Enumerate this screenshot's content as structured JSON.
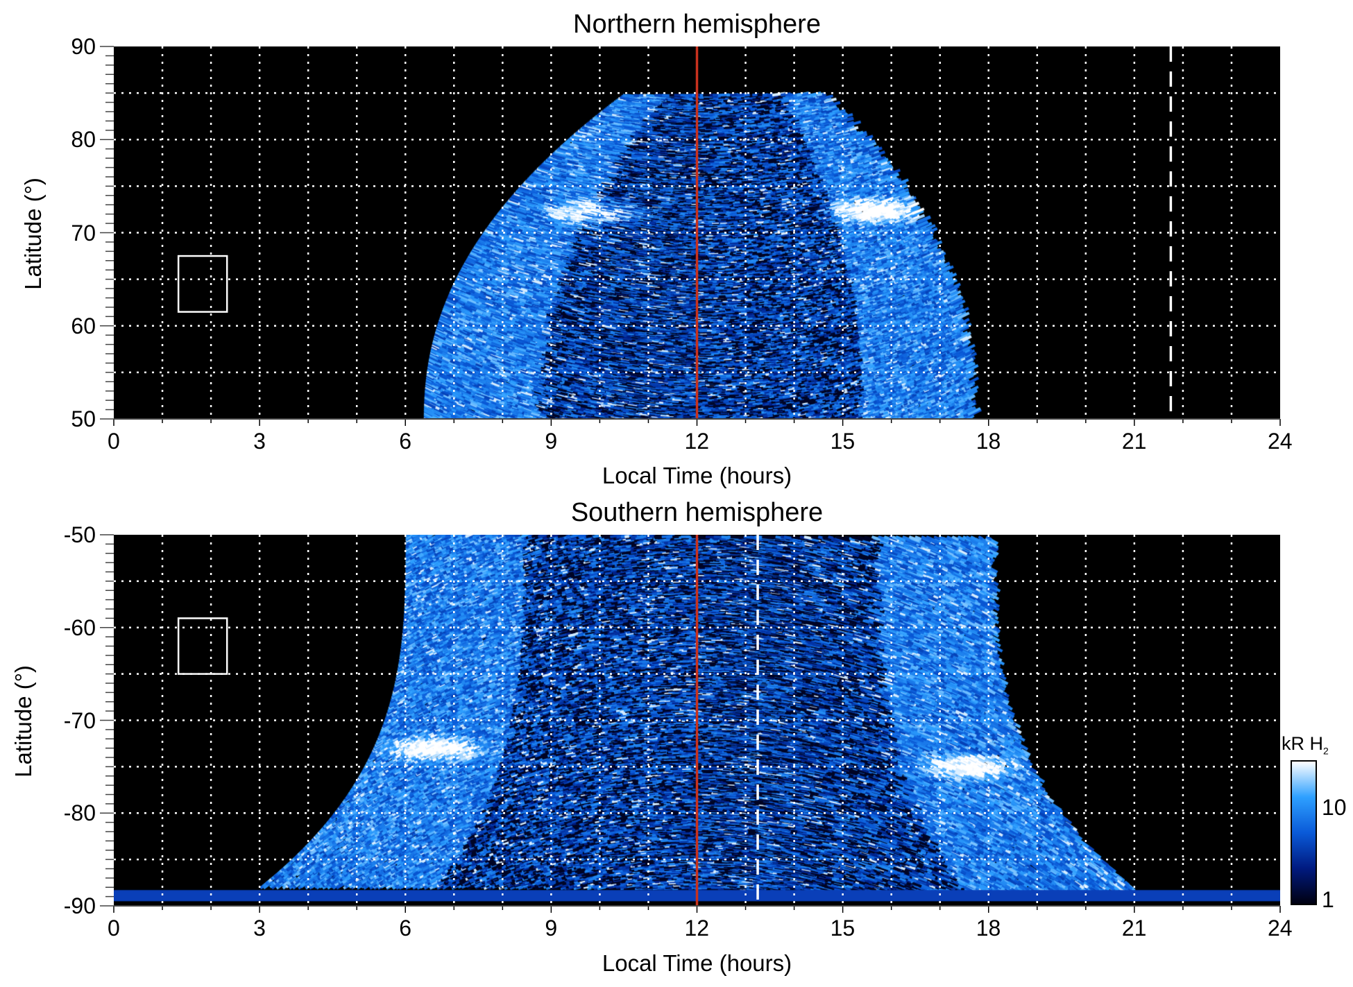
{
  "chart_data": [
    {
      "type": "heatmap",
      "title": "Northern hemisphere",
      "xlabel": "Local Time (hours)",
      "ylabel": "Latitude (°)",
      "xlim": [
        0,
        24
      ],
      "ylim": [
        50,
        90
      ],
      "xticks": [
        "0",
        "3",
        "6",
        "9",
        "12",
        "15",
        "18",
        "21",
        "24"
      ],
      "yticks": [
        "50",
        "60",
        "70",
        "80",
        "90"
      ],
      "grid": {
        "x_step_hours": 1,
        "y_step_deg": 5,
        "style": "dotted"
      },
      "noon_line_lt": 12,
      "noon_line_color": "#c8321e",
      "dashed_line_lt": 21.75,
      "box": {
        "lt": [
          1.33,
          2.33
        ],
        "lat": [
          61.5,
          67.5
        ]
      },
      "coverage": {
        "lt_at_equatorward": [
          6.4,
          17.6
        ],
        "lt_at_poleward": [
          10.5,
          14.5
        ],
        "lat_max": 85
      },
      "bright_spots": [
        {
          "lt": 9.8,
          "lat": 72.5
        },
        {
          "lt": 15.6,
          "lat": 72.5
        }
      ]
    },
    {
      "type": "heatmap",
      "title": "Southern hemisphere",
      "xlabel": "Local Time (hours)",
      "ylabel": "Latitude (°)",
      "xlim": [
        0,
        24
      ],
      "ylim": [
        -90,
        -50
      ],
      "xticks": [
        "0",
        "3",
        "6",
        "9",
        "12",
        "15",
        "18",
        "21",
        "24"
      ],
      "yticks": [
        "-90",
        "-80",
        "-70",
        "-60",
        "-50"
      ],
      "grid": {
        "x_step_hours": 1,
        "y_step_deg": 5,
        "style": "dotted"
      },
      "noon_line_lt": 12,
      "noon_line_color": "#c8321e",
      "dashed_line_lt": 13.25,
      "box": {
        "lt": [
          1.33,
          2.33
        ],
        "lat": [
          -65,
          -59
        ]
      },
      "coverage": {
        "lt_at_equatorward": [
          6.0,
          18.0
        ],
        "lt_at_poleward": [
          3.0,
          21.0
        ],
        "lat_min": -88
      },
      "bright_spots": [
        {
          "lt": 6.5,
          "lat": -73
        },
        {
          "lt": 17.5,
          "lat": -74.5
        }
      ]
    }
  ],
  "colorbar": {
    "label": "kR H",
    "label_sub": "2",
    "scale": "log",
    "range": [
      1,
      30
    ],
    "ticks": [
      "1",
      "10"
    ],
    "colors": [
      "#000010",
      "#001a80",
      "#0a5ad8",
      "#2ea0ff",
      "#ffffff"
    ]
  }
}
